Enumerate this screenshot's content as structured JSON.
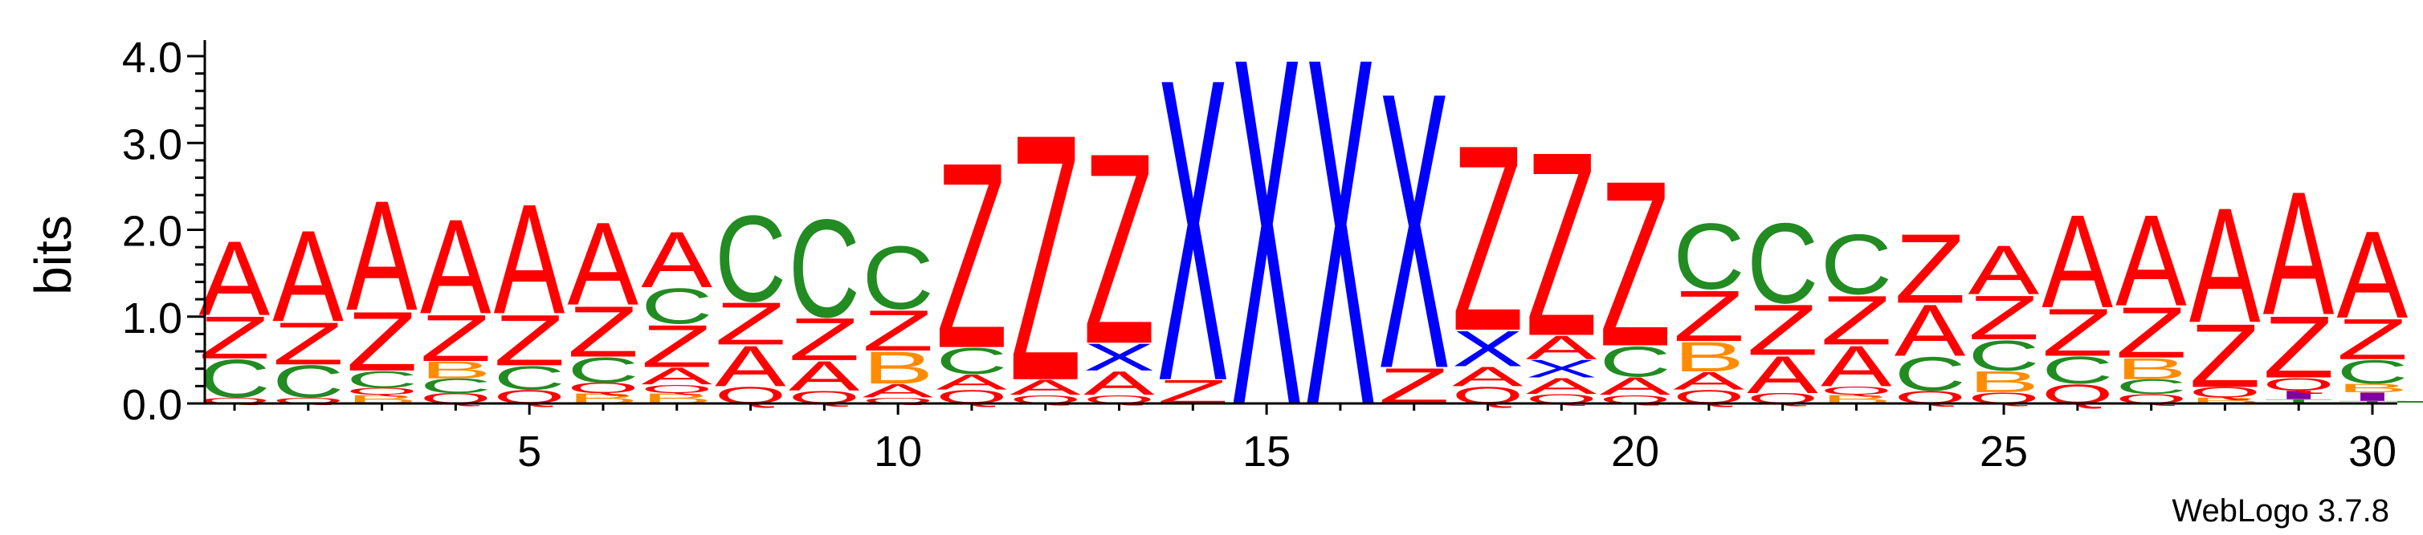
{
  "chart_data": {
    "type": "sequence-logo",
    "ylabel": "bits",
    "ylim": [
      0,
      4.0
    ],
    "y_ticks": [
      "0.0",
      "1.0",
      "2.0",
      "3.0",
      "4.0"
    ],
    "x_range": [
      1,
      30
    ],
    "x_ticks": [
      "5",
      "10",
      "15",
      "20",
      "25",
      "30"
    ],
    "footer": "WebLogo 3.7.8",
    "colors": {
      "A": "#ff0000",
      "Z": "#ff0000",
      "Q": "#ff0000",
      "C": "#228b22",
      "B": "#ff8c00",
      "X": "#0000ff",
      "I": "#8000a0",
      "T": "#228b22"
    },
    "positions": [
      {
        "pos": 1,
        "stack": [
          [
            "Q",
            0.07
          ],
          [
            "C",
            0.45
          ],
          [
            "Z",
            0.5
          ],
          [
            "A",
            0.88
          ]
        ]
      },
      {
        "pos": 2,
        "stack": [
          [
            "Q",
            0.07
          ],
          [
            "C",
            0.38
          ],
          [
            "Z",
            0.5
          ],
          [
            "A",
            1.08
          ]
        ]
      },
      {
        "pos": 3,
        "stack": [
          [
            "B",
            0.1
          ],
          [
            "Q",
            0.08
          ],
          [
            "C",
            0.2
          ],
          [
            "Z",
            0.7
          ],
          [
            "A",
            1.3
          ]
        ]
      },
      {
        "pos": 4,
        "stack": [
          [
            "Q",
            0.12
          ],
          [
            "C",
            0.17
          ],
          [
            "B",
            0.2
          ],
          [
            "Z",
            0.55
          ],
          [
            "A",
            1.12
          ]
        ]
      },
      {
        "pos": 5,
        "stack": [
          [
            "Q",
            0.16
          ],
          [
            "C",
            0.28
          ],
          [
            "Z",
            0.6
          ],
          [
            "A",
            1.3
          ]
        ]
      },
      {
        "pos": 6,
        "stack": [
          [
            "B",
            0.12
          ],
          [
            "Q",
            0.12
          ],
          [
            "C",
            0.3
          ],
          [
            "Z",
            0.6
          ],
          [
            "A",
            0.98
          ]
        ]
      },
      {
        "pos": 7,
        "stack": [
          [
            "B",
            0.12
          ],
          [
            "Q",
            0.1
          ],
          [
            "A",
            0.2
          ],
          [
            "Z",
            0.5
          ],
          [
            "C",
            0.42
          ],
          [
            "A",
            0.66
          ]
        ]
      },
      {
        "pos": 8,
        "stack": [
          [
            "Q",
            0.2
          ],
          [
            "A",
            0.48
          ],
          [
            "Z",
            0.5
          ],
          [
            "C",
            1.02
          ]
        ]
      },
      {
        "pos": 9,
        "stack": [
          [
            "Q",
            0.15
          ],
          [
            "A",
            0.35
          ],
          [
            "Z",
            0.5
          ],
          [
            "C",
            1.16
          ]
        ]
      },
      {
        "pos": 10,
        "stack": [
          [
            "Q",
            0.07
          ],
          [
            "A",
            0.16
          ],
          [
            "B",
            0.38
          ],
          [
            "Z",
            0.48
          ],
          [
            "C",
            0.75
          ]
        ]
      },
      {
        "pos": 11,
        "stack": [
          [
            "Q",
            0.16
          ],
          [
            "A",
            0.18
          ],
          [
            "C",
            0.31
          ],
          [
            "Z",
            2.2
          ]
        ]
      },
      {
        "pos": 12,
        "stack": [
          [
            "Q",
            0.1
          ],
          [
            "A",
            0.18
          ],
          [
            "Z",
            2.92
          ]
        ]
      },
      {
        "pos": 13,
        "stack": [
          [
            "Q",
            0.1
          ],
          [
            "A",
            0.28
          ],
          [
            "X",
            0.32
          ],
          [
            "Z",
            2.26
          ]
        ]
      },
      {
        "pos": 14,
        "stack": [
          [
            "Z",
            0.28
          ],
          [
            "X",
            3.58
          ]
        ]
      },
      {
        "pos": 15,
        "stack": [
          [
            "X",
            4.12
          ]
        ]
      },
      {
        "pos": 16,
        "stack": [
          [
            "X",
            4.12
          ]
        ]
      },
      {
        "pos": 17,
        "stack": [
          [
            "Z",
            0.42
          ],
          [
            "X",
            3.27
          ]
        ]
      },
      {
        "pos": 18,
        "stack": [
          [
            "Q",
            0.2
          ],
          [
            "A",
            0.23
          ],
          [
            "X",
            0.42
          ],
          [
            "Z",
            2.2
          ]
        ]
      },
      {
        "pos": 19,
        "stack": [
          [
            "Q",
            0.11
          ],
          [
            "A",
            0.19
          ],
          [
            "X",
            0.21
          ],
          [
            "A",
            0.28
          ],
          [
            "Z",
            2.18
          ]
        ]
      },
      {
        "pos": 20,
        "stack": [
          [
            "Q",
            0.1
          ],
          [
            "A",
            0.21
          ],
          [
            "C",
            0.36
          ],
          [
            "Z",
            1.96
          ]
        ]
      },
      {
        "pos": 21,
        "stack": [
          [
            "Q",
            0.16
          ],
          [
            "A",
            0.21
          ],
          [
            "B",
            0.35
          ],
          [
            "Z",
            0.6
          ],
          [
            "C",
            0.78
          ]
        ]
      },
      {
        "pos": 22,
        "stack": [
          [
            "Q",
            0.12
          ],
          [
            "A",
            0.44
          ],
          [
            "Z",
            0.6
          ],
          [
            "C",
            0.95
          ]
        ]
      },
      {
        "pos": 23,
        "stack": [
          [
            "B",
            0.1
          ],
          [
            "Q",
            0.1
          ],
          [
            "A",
            0.48
          ],
          [
            "Z",
            0.58
          ],
          [
            "C",
            0.71
          ]
        ]
      },
      {
        "pos": 24,
        "stack": [
          [
            "Q",
            0.15
          ],
          [
            "C",
            0.4
          ],
          [
            "A",
            0.61
          ],
          [
            "Z",
            0.82
          ]
        ]
      },
      {
        "pos": 25,
        "stack": [
          [
            "Q",
            0.13
          ],
          [
            "B",
            0.25
          ],
          [
            "C",
            0.36
          ],
          [
            "Z",
            0.52
          ],
          [
            "A",
            0.58
          ]
        ]
      },
      {
        "pos": 26,
        "stack": [
          [
            "Q",
            0.23
          ],
          [
            "C",
            0.32
          ],
          [
            "Z",
            0.56
          ],
          [
            "A",
            1.1
          ]
        ]
      },
      {
        "pos": 27,
        "stack": [
          [
            "Q",
            0.11
          ],
          [
            "C",
            0.17
          ],
          [
            "B",
            0.25
          ],
          [
            "Z",
            0.6
          ],
          [
            "A",
            1.08
          ]
        ]
      },
      {
        "pos": 28,
        "stack": [
          [
            "B",
            0.07
          ],
          [
            "Q",
            0.12
          ],
          [
            "Z",
            0.75
          ],
          [
            "A",
            1.36
          ]
        ]
      },
      {
        "pos": 29,
        "stack": [
          [
            "T",
            0.05
          ],
          [
            "I",
            0.1
          ],
          [
            "Q",
            0.15
          ],
          [
            "Z",
            0.73
          ],
          [
            "A",
            1.46
          ]
        ]
      },
      {
        "pos": 30,
        "stack": [
          [
            "T",
            0.03
          ],
          [
            "I",
            0.1
          ],
          [
            "B",
            0.1
          ],
          [
            "C",
            0.28
          ],
          [
            "Z",
            0.48
          ],
          [
            "A",
            1.03
          ]
        ]
      }
    ]
  }
}
